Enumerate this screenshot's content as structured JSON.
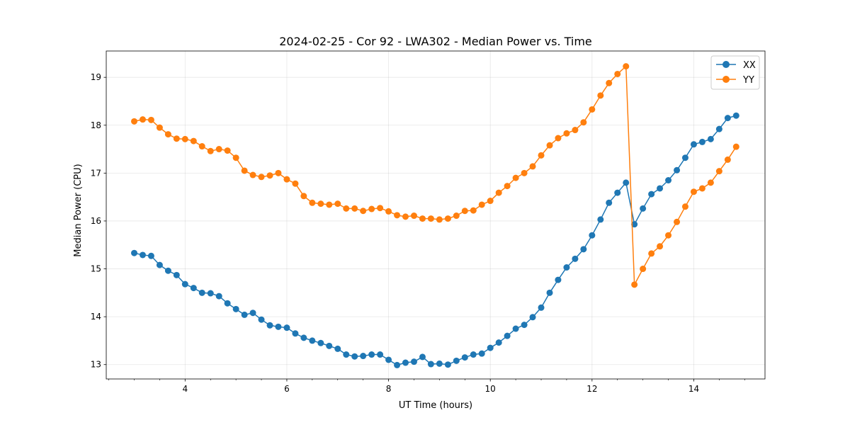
{
  "chart_data": {
    "type": "line",
    "title": "2024-02-25 - Cor 92 - LWA302 - Median Power vs. Time",
    "xlabel": "UT Time (hours)",
    "ylabel": "Median Power (CPU)",
    "xlim": [
      2.45,
      15.4
    ],
    "ylim": [
      12.7,
      19.55
    ],
    "xticks": [
      4,
      6,
      8,
      10,
      12,
      14
    ],
    "xtick_labels": [
      "4",
      "6",
      "8",
      "10",
      "12",
      "14"
    ],
    "yticks": [
      13,
      14,
      15,
      16,
      17,
      18,
      19
    ],
    "ytick_labels": [
      "13",
      "14",
      "15",
      "16",
      "17",
      "18",
      "19"
    ],
    "grid": true,
    "legend_position": "top-right",
    "x": [
      3.0,
      3.167,
      3.333,
      3.5,
      3.667,
      3.833,
      4.0,
      4.167,
      4.333,
      4.5,
      4.667,
      4.833,
      5.0,
      5.167,
      5.333,
      5.5,
      5.667,
      5.833,
      6.0,
      6.167,
      6.333,
      6.5,
      6.667,
      6.833,
      7.0,
      7.167,
      7.333,
      7.5,
      7.667,
      7.833,
      8.0,
      8.167,
      8.333,
      8.5,
      8.667,
      8.833,
      9.0,
      9.167,
      9.333,
      9.5,
      9.667,
      9.833,
      10.0,
      10.167,
      10.333,
      10.5,
      10.667,
      10.833,
      11.0,
      11.167,
      11.333,
      11.5,
      11.667,
      11.833,
      12.0,
      12.167,
      12.333,
      12.5,
      12.667,
      12.833,
      13.0,
      13.167,
      13.333,
      13.5,
      13.667,
      13.833,
      14.0,
      14.167,
      14.333,
      14.5,
      14.667,
      14.833
    ],
    "series": [
      {
        "name": "XX",
        "color": "#1f77b4",
        "values": [
          15.33,
          15.29,
          15.27,
          15.08,
          14.96,
          14.87,
          14.68,
          14.6,
          14.5,
          14.49,
          14.43,
          14.28,
          14.16,
          14.04,
          14.08,
          13.94,
          13.82,
          13.79,
          13.77,
          13.65,
          13.56,
          13.5,
          13.45,
          13.39,
          13.33,
          13.21,
          13.17,
          13.18,
          13.21,
          13.21,
          13.1,
          12.99,
          13.04,
          13.06,
          13.16,
          13.01,
          13.02,
          13.0,
          13.08,
          13.15,
          13.21,
          13.23,
          13.35,
          13.46,
          13.6,
          13.75,
          13.83,
          13.99,
          14.19,
          14.5,
          14.77,
          15.03,
          15.21,
          15.41,
          15.7,
          16.03,
          16.38,
          16.59,
          16.8,
          15.93,
          16.26,
          16.56,
          16.68,
          16.85,
          17.06,
          17.32,
          17.6,
          17.65,
          17.71,
          17.92,
          18.15,
          18.2
        ]
      },
      {
        "name": "YY",
        "color": "#ff7f0e",
        "values": [
          18.08,
          18.12,
          18.11,
          17.95,
          17.81,
          17.72,
          17.71,
          17.67,
          17.56,
          17.46,
          17.5,
          17.47,
          17.32,
          17.05,
          16.96,
          16.92,
          16.95,
          17.0,
          16.87,
          16.78,
          16.52,
          16.38,
          16.36,
          16.34,
          16.36,
          16.26,
          16.26,
          16.21,
          16.25,
          16.27,
          16.2,
          16.12,
          16.09,
          16.11,
          16.05,
          16.05,
          16.03,
          16.05,
          16.11,
          16.21,
          16.22,
          16.34,
          16.42,
          16.59,
          16.73,
          16.9,
          17.0,
          17.14,
          17.37,
          17.58,
          17.73,
          17.83,
          17.9,
          18.06,
          18.33,
          18.62,
          18.88,
          19.07,
          19.23,
          14.67,
          15.0,
          15.32,
          15.47,
          15.7,
          15.98,
          16.3,
          16.61,
          16.68,
          16.8,
          17.04,
          17.28,
          17.55
        ]
      }
    ]
  }
}
